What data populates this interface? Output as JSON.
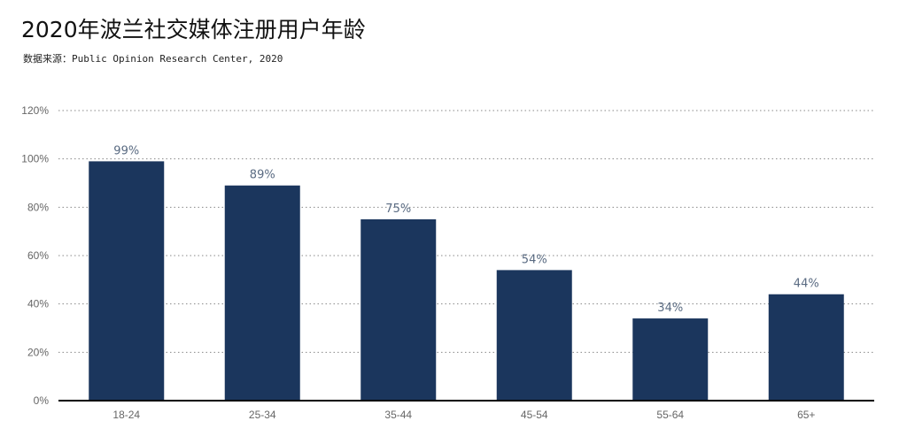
{
  "header": {
    "title": "2020年波兰社交媒体注册用户年龄",
    "source": "数据来源：Public Opinion Research Center, 2020"
  },
  "colors": {
    "bar": "#1b365d",
    "axis": "#000000",
    "grid": "#888888",
    "tick_text": "#666666",
    "data_label": "#5a6b82"
  },
  "chart_data": {
    "type": "bar",
    "title": "2020年波兰社交媒体注册用户年龄",
    "categories": [
      "18-24",
      "25-34",
      "35-44",
      "45-54",
      "55-64",
      "65+"
    ],
    "values": [
      99,
      89,
      75,
      54,
      34,
      44
    ],
    "value_labels": [
      "99%",
      "89%",
      "75%",
      "54%",
      "34%",
      "44%"
    ],
    "ylim": [
      0,
      120
    ],
    "yticks": [
      0,
      20,
      40,
      60,
      80,
      100,
      120
    ],
    "ytick_labels": [
      "0%",
      "20%",
      "40%",
      "60%",
      "80%",
      "100%",
      "120%"
    ],
    "xlabel": "",
    "ylabel": "",
    "grid": true,
    "legend": "none"
  }
}
